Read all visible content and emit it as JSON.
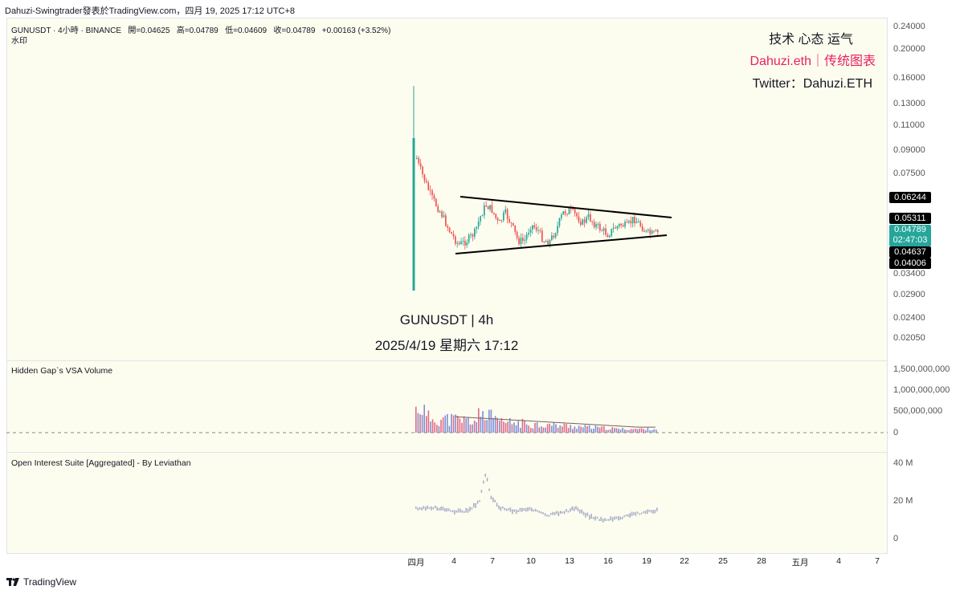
{
  "window": {
    "title": "Dahuzi-Swingtrader發表於TradingView.com，四月 19, 2025 17:12 UTC+8"
  },
  "header": {
    "symbol_line": "GUNUSDT · 4小時 · BINANCE",
    "open_label": "開=",
    "open": "0.04625",
    "high_label": "高=",
    "high": "0.04789",
    "low_label": "低=",
    "low": "0.04609",
    "close_label": "收=",
    "close": "0.04789",
    "change": "+0.00163 (+3.52%)",
    "watermark_label": "水印"
  },
  "watermark": {
    "line1": "技术 心态 运气",
    "line2": "Dahuzi.eth｜传统图表",
    "line3": "Twitter：Dahuzi.ETH"
  },
  "center_label": {
    "line1": "GUNUSDT | 4h",
    "line2": "2025/4/19 星期六 17:12"
  },
  "price_axis": {
    "labels": [
      "0.24000",
      "0.20000",
      "0.16000",
      "0.13000",
      "0.11000",
      "0.09000",
      "0.07500",
      "0.03400",
      "0.02900",
      "0.02400",
      "0.02050"
    ],
    "tags": {
      "upper": "0.06244",
      "mid": "0.05311",
      "last": "0.04789",
      "countdown": "02:47:03",
      "lower1": "0.04637",
      "lower2": "0.04006"
    }
  },
  "volume_pane": {
    "title": "Hidden Gap`s VSA Volume",
    "axis": [
      "1,500,000,000",
      "1,000,000,000",
      "500,000,000",
      "0"
    ]
  },
  "oi_pane": {
    "title": "Open Interest Suite [Aggregated] - By Leviathan",
    "axis": [
      "40 M",
      "20 M",
      "0"
    ]
  },
  "time_axis": {
    "labels": [
      "四月",
      "4",
      "7",
      "10",
      "13",
      "16",
      "19",
      "22",
      "25",
      "28",
      "五月",
      "4",
      "7"
    ]
  },
  "footer": {
    "brand": "TradingView"
  },
  "colors": {
    "bull": "#26a69a",
    "bear": "#ef5350",
    "pink_text": "#e91e63",
    "chart_bg": "#fdfdef"
  }
}
